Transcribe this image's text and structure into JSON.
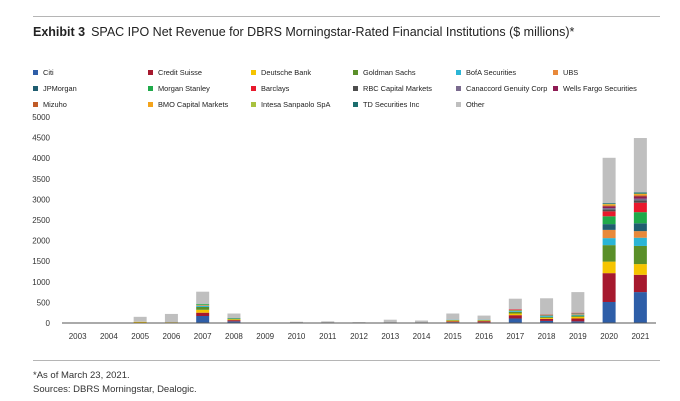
{
  "exhibit_label": "Exhibit 3",
  "title": "SPAC IPO Net Revenue for DBRS Morningstar-Rated Financial Institutions ($ millions)*",
  "footnote": "*As of March 23, 2021.",
  "source": "Sources: DBRS Morningstar, Dealogic.",
  "chart_data": {
    "type": "bar",
    "stacked": true,
    "title": "",
    "xlabel": "",
    "ylabel": "",
    "ylim": [
      0,
      5000
    ],
    "yticks": [
      0,
      500,
      1000,
      1500,
      2000,
      2500,
      3000,
      3500,
      4000,
      4500,
      5000
    ],
    "grid": false,
    "legend_position": "top",
    "categories": [
      "2003",
      "2004",
      "2005",
      "2006",
      "2007",
      "2008",
      "2009",
      "2010",
      "2011",
      "2012",
      "2013",
      "2014",
      "2015",
      "2016",
      "2017",
      "2018",
      "2019",
      "2020",
      "2021"
    ],
    "series": [
      {
        "name": "Citi",
        "color": "#2e5ea8",
        "values": [
          0,
          0,
          0,
          0,
          170,
          40,
          0,
          0,
          0,
          0,
          0,
          0,
          20,
          15,
          110,
          50,
          40,
          510,
          750
        ]
      },
      {
        "name": "Credit Suisse",
        "color": "#a6192e",
        "values": [
          0,
          0,
          0,
          0,
          80,
          30,
          0,
          0,
          0,
          0,
          0,
          10,
          20,
          30,
          80,
          50,
          70,
          700,
          420
        ]
      },
      {
        "name": "Deutsche Bank",
        "color": "#f5c400",
        "values": [
          0,
          0,
          30,
          20,
          70,
          20,
          0,
          0,
          0,
          0,
          10,
          0,
          20,
          15,
          40,
          25,
          40,
          280,
          260
        ]
      },
      {
        "name": "Goldman Sachs",
        "color": "#5a8f29",
        "values": [
          0,
          0,
          0,
          0,
          70,
          20,
          0,
          0,
          0,
          0,
          0,
          0,
          10,
          10,
          40,
          25,
          30,
          400,
          440
        ]
      },
      {
        "name": "BofA Securities",
        "color": "#2bb5d6",
        "values": [
          0,
          0,
          0,
          0,
          30,
          10,
          0,
          0,
          0,
          0,
          0,
          0,
          10,
          10,
          20,
          20,
          20,
          170,
          200
        ]
      },
      {
        "name": "UBS",
        "color": "#e8893a",
        "values": [
          0,
          0,
          0,
          0,
          20,
          0,
          0,
          0,
          0,
          0,
          0,
          0,
          0,
          0,
          15,
          10,
          15,
          200,
          160
        ]
      },
      {
        "name": "JPMorgan",
        "color": "#1f5d70",
        "values": [
          0,
          0,
          0,
          0,
          0,
          0,
          0,
          0,
          0,
          0,
          0,
          0,
          0,
          0,
          0,
          10,
          10,
          140,
          190
        ]
      },
      {
        "name": "Morgan Stanley",
        "color": "#1faa4a",
        "values": [
          0,
          0,
          0,
          0,
          20,
          0,
          0,
          0,
          0,
          0,
          0,
          0,
          0,
          0,
          10,
          10,
          10,
          190,
          270
        ]
      },
      {
        "name": "Barclays",
        "color": "#e8192c",
        "values": [
          0,
          0,
          0,
          0,
          0,
          0,
          0,
          0,
          0,
          0,
          0,
          0,
          0,
          0,
          15,
          10,
          15,
          120,
          230
        ]
      },
      {
        "name": "RBC Capital Markets",
        "color": "#4d4d4d",
        "values": [
          0,
          0,
          0,
          0,
          0,
          0,
          0,
          0,
          0,
          0,
          0,
          0,
          0,
          0,
          0,
          0,
          0,
          50,
          60
        ]
      },
      {
        "name": "Canaccord Genuity Corp",
        "color": "#7a6a8e",
        "values": [
          0,
          0,
          0,
          0,
          0,
          0,
          0,
          0,
          0,
          0,
          0,
          0,
          0,
          0,
          0,
          0,
          0,
          30,
          40
        ]
      },
      {
        "name": "Wells Fargo Securities",
        "color": "#8e1b54",
        "values": [
          0,
          0,
          0,
          0,
          0,
          0,
          0,
          0,
          0,
          0,
          0,
          0,
          0,
          0,
          0,
          0,
          0,
          40,
          50
        ]
      },
      {
        "name": "Mizuho",
        "color": "#c05b28",
        "values": [
          0,
          0,
          0,
          0,
          0,
          0,
          0,
          0,
          0,
          0,
          0,
          0,
          0,
          0,
          0,
          0,
          0,
          20,
          30
        ]
      },
      {
        "name": "BMO Capital Markets",
        "color": "#f3a31b",
        "values": [
          0,
          0,
          0,
          0,
          0,
          0,
          0,
          0,
          0,
          0,
          0,
          0,
          0,
          0,
          0,
          0,
          0,
          30,
          30
        ]
      },
      {
        "name": "Intesa Sanpaolo SpA",
        "color": "#a9c23f",
        "values": [
          0,
          0,
          0,
          0,
          0,
          0,
          0,
          0,
          0,
          0,
          0,
          0,
          0,
          0,
          0,
          0,
          0,
          10,
          10
        ]
      },
      {
        "name": "TD Securities Inc",
        "color": "#1c6e6e",
        "values": [
          0,
          0,
          0,
          0,
          0,
          0,
          0,
          0,
          0,
          0,
          0,
          0,
          0,
          0,
          0,
          0,
          0,
          20,
          30
        ]
      },
      {
        "name": "Other",
        "color": "#bfbfbf",
        "values": [
          5,
          10,
          120,
          200,
          300,
          110,
          10,
          30,
          40,
          20,
          70,
          50,
          150,
          100,
          260,
          390,
          500,
          1100,
          1320
        ]
      }
    ]
  }
}
